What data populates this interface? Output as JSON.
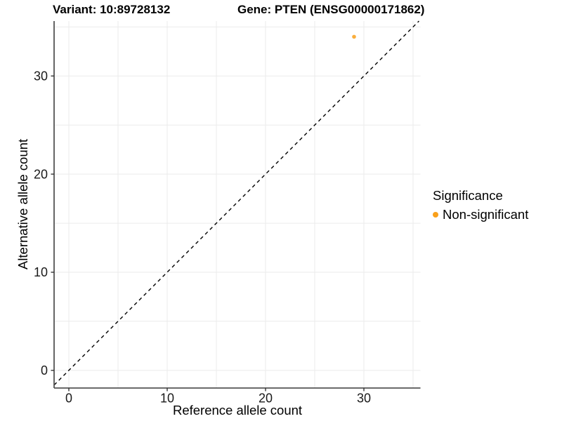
{
  "chart_data": {
    "type": "scatter",
    "title_left": "Variant: 10:89728132",
    "title_right": "Gene: PTEN (ENSG00000171862)",
    "xlabel": "Reference allele count",
    "ylabel": "Alternative allele count",
    "xlim": [
      -1.5,
      35.75
    ],
    "ylim": [
      -1.8,
      35.6
    ],
    "xticks": [
      0,
      10,
      20,
      30
    ],
    "yticks": [
      0,
      10,
      20,
      30
    ],
    "grid": {
      "step": 5,
      "min": 0,
      "max": 35,
      "on": true
    },
    "identity_line": {
      "type": "dashed",
      "equation": "y = x"
    },
    "series": [
      {
        "name": "Non-significant",
        "points": [
          {
            "x": 29,
            "y": 34
          }
        ]
      }
    ],
    "legend": {
      "title": "Significance",
      "position": "right",
      "entries": [
        {
          "label": "Non-significant"
        }
      ]
    }
  },
  "colors": {
    "point_orange": "#F9A01B",
    "gridline": "#ebebeb",
    "axis_line": "#545454",
    "tick_mark": "#333333",
    "tick_label": "#1a1a1a",
    "identity_line": "#000000",
    "background": "#ffffff"
  }
}
